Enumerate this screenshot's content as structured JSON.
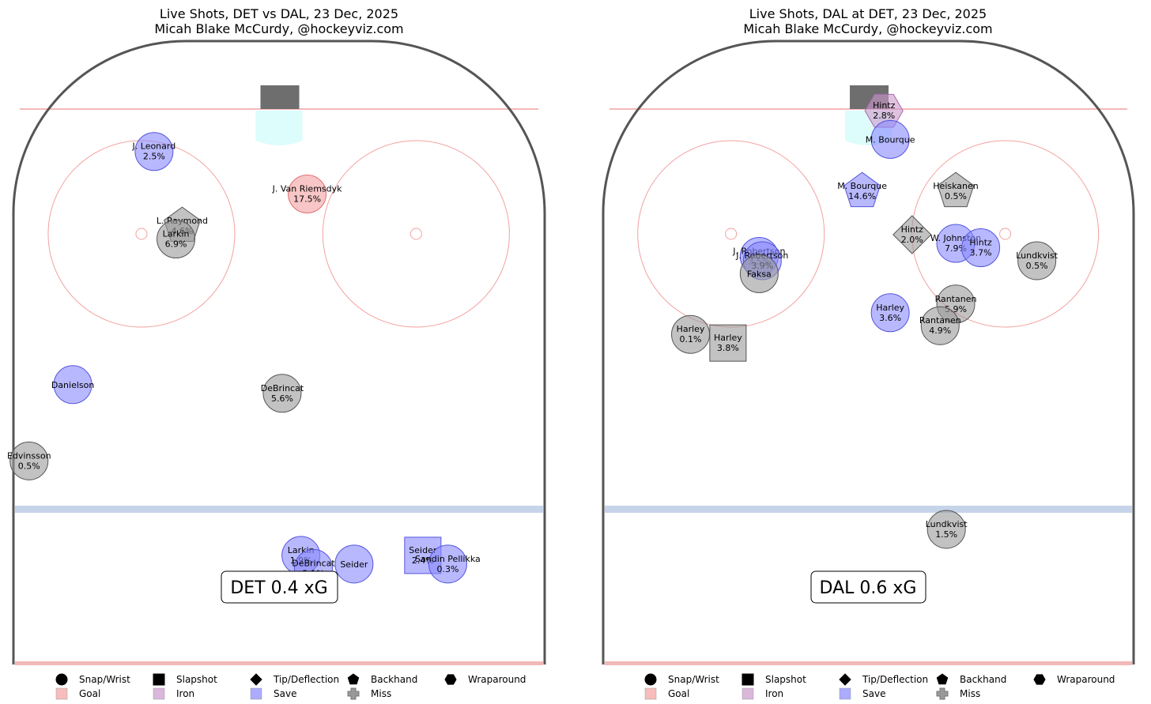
{
  "colors": {
    "goal": "#f4a0a0",
    "iron": "#cc99cc",
    "save": "#8888ff",
    "miss": "#999999",
    "net": "#6e6e6e",
    "crease": "#ddfcfc",
    "goal_line": "#f3b8b8",
    "blue_line": "#c6d4ea",
    "circles": "#f4a0a0",
    "boards": "#555555"
  },
  "legend": {
    "shapes": [
      {
        "icon": "circle",
        "label": "Snap/Wrist"
      },
      {
        "icon": "square",
        "label": "Slapshot"
      },
      {
        "icon": "diamond",
        "label": "Tip/Deflection"
      },
      {
        "icon": "pentagon",
        "label": "Backhand"
      },
      {
        "icon": "hexagon",
        "label": "Wraparound"
      }
    ],
    "outcomes": [
      {
        "key": "goal",
        "label": "Goal"
      },
      {
        "key": "iron",
        "label": "Iron"
      },
      {
        "key": "save",
        "label": "Save"
      },
      {
        "key": "miss",
        "label": "Miss"
      }
    ]
  },
  "chart_data": [
    {
      "type": "scatter",
      "title": "Live Shots, DET vs DAL, 23 Dec, 2025",
      "subtitle": "Micah Blake McCurdy, @hockeyviz.com",
      "xg_label": "DET 0.4 xG",
      "ylim": [
        -42.5,
        42.5
      ],
      "xlim": [
        25,
        100
      ],
      "net_side": "left",
      "shots": [
        {
          "shooter": "J. Leonard",
          "pct": "2.5%",
          "shape": "circle",
          "outcome": "save",
          "x": 84.1,
          "y": -20
        },
        {
          "shooter": "J. Van Riemsdyk",
          "pct": "17.5%",
          "shape": "circle",
          "outcome": "goal",
          "x": 79.2,
          "y": 4.5
        },
        {
          "shooter": "L. Raymond",
          "pct": "4.6%",
          "shape": "pentagon",
          "outcome": "miss",
          "x": 75.5,
          "y": -15.5
        },
        {
          "shooter": "Larkin",
          "pct": "6.9%",
          "shape": "circle",
          "outcome": "miss",
          "x": 74,
          "y": -16.5
        },
        {
          "shooter": "Danielson",
          "pct": "",
          "shape": "circle",
          "outcome": "save",
          "x": 57.2,
          "y": -33
        },
        {
          "shooter": "DeBrincat",
          "pct": "5.6%",
          "shape": "circle",
          "outcome": "miss",
          "x": 56.2,
          "y": 0.5
        },
        {
          "shooter": "Edvinsson",
          "pct": "0.5%",
          "shape": "circle",
          "outcome": "miss",
          "x": 48.4,
          "y": -40
        },
        {
          "shooter": "Larkin",
          "pct": "1.9%",
          "shape": "circle",
          "outcome": "save",
          "x": 37.5,
          "y": 3.5
        },
        {
          "shooter": "DeBrincat",
          "pct": "2.1%",
          "shape": "circle",
          "outcome": "save",
          "x": 36,
          "y": 5.5
        },
        {
          "shooter": "Seider",
          "pct": "",
          "shape": "circle",
          "outcome": "save",
          "x": 36.5,
          "y": 12
        },
        {
          "shooter": "Seider",
          "pct": "2.4%",
          "shape": "square",
          "outcome": "save",
          "x": 37.5,
          "y": 23
        },
        {
          "shooter": "Sandin Pellikka",
          "pct": "0.3%",
          "shape": "circle",
          "outcome": "save",
          "x": 36.5,
          "y": 27
        }
      ]
    },
    {
      "type": "scatter",
      "title": "Live Shots, DAL at DET, 23 Dec, 2025",
      "subtitle": "Micah Blake McCurdy, @hockeyviz.com",
      "xg_label": "DAL 0.6 xG",
      "ylim": [
        -42.5,
        42.5
      ],
      "xlim": [
        25,
        100
      ],
      "net_side": "left",
      "shots": [
        {
          "shooter": "Hintz",
          "pct": "2.8%",
          "shape": "hexagon",
          "outcome": "iron",
          "x": 88.8,
          "y": 2.5
        },
        {
          "shooter": "M. Bourque",
          "pct": "",
          "shape": "circle",
          "outcome": "save",
          "x": 85.5,
          "y": 3.5
        },
        {
          "shooter": "M. Bourque",
          "pct": "14.6%",
          "shape": "pentagon",
          "outcome": "save",
          "x": 79.5,
          "y": -1
        },
        {
          "shooter": "Heiskanen",
          "pct": "0.5%",
          "shape": "pentagon",
          "outcome": "miss",
          "x": 79.5,
          "y": 14
        },
        {
          "shooter": "Hintz",
          "pct": "2.0%",
          "shape": "diamond",
          "outcome": "miss",
          "x": 74.5,
          "y": 7
        },
        {
          "shooter": "W. Johnston",
          "pct": "7.9%",
          "shape": "circle",
          "outcome": "save",
          "x": 73.5,
          "y": 14
        },
        {
          "shooter": "Hintz",
          "pct": "3.7%",
          "shape": "circle",
          "outcome": "save",
          "x": 73,
          "y": 18
        },
        {
          "shooter": "Lundkvist",
          "pct": "0.5%",
          "shape": "circle",
          "outcome": "miss",
          "x": 71.5,
          "y": 27
        },
        {
          "shooter": "J. Robertson",
          "pct": "3.5%",
          "shape": "circle",
          "outcome": "save",
          "x": 72,
          "y": -17.5
        },
        {
          "shooter": "J. Robertson",
          "pct": "3.9%",
          "shape": "circle",
          "outcome": "save",
          "x": 71.5,
          "y": -17
        },
        {
          "shooter": "Faksa",
          "pct": "",
          "shape": "circle",
          "outcome": "miss",
          "x": 70,
          "y": -17.5
        },
        {
          "shooter": "Rantanen",
          "pct": "5.9%",
          "shape": "circle",
          "outcome": "miss",
          "x": 66.5,
          "y": 14
        },
        {
          "shooter": "Rantanen",
          "pct": "4.9%",
          "shape": "circle",
          "outcome": "miss",
          "x": 64,
          "y": 11.5
        },
        {
          "shooter": "Harley",
          "pct": "3.6%",
          "shape": "circle",
          "outcome": "save",
          "x": 65.5,
          "y": 3.5
        },
        {
          "shooter": "Harley",
          "pct": "0.1%",
          "shape": "circle",
          "outcome": "miss",
          "x": 63,
          "y": -28.5
        },
        {
          "shooter": "Harley",
          "pct": "3.8%",
          "shape": "square",
          "outcome": "miss",
          "x": 62,
          "y": -22.5
        },
        {
          "shooter": "Lundkvist",
          "pct": "1.5%",
          "shape": "circle",
          "outcome": "miss",
          "x": 40.5,
          "y": 12.5
        }
      ]
    }
  ]
}
